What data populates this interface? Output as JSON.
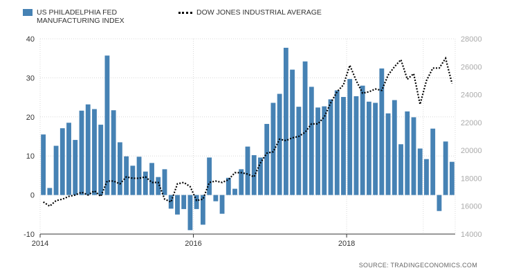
{
  "colors": {
    "bar": "#4682b4",
    "line": "#000000",
    "grid": "#d8d8d8",
    "axis": "#333333",
    "right_axis_text": "#aaaaaa"
  },
  "legend": {
    "bar_label": "US PHILADELPHIA FED MANUFACTURING INDEX",
    "line_label": "DOW JONES INDUSTRIAL AVERAGE"
  },
  "source": "SOURCE: TRADINGECONOMICS.COM",
  "chart_data": {
    "type": "bar",
    "x_range": [
      "2014-01",
      "2019-06"
    ],
    "x_ticks": [
      {
        "label": "2014",
        "date": "2014-01"
      },
      {
        "label": "2016",
        "date": "2016-01"
      },
      {
        "label": "2018",
        "date": "2018-01"
      }
    ],
    "left_axis": {
      "ylim": [
        -10,
        40
      ],
      "ticks": [
        -10,
        0,
        10,
        20,
        30,
        40
      ]
    },
    "right_axis": {
      "ylim": [
        14000,
        28000
      ],
      "ticks": [
        14000,
        16000,
        18000,
        20000,
        22000,
        24000,
        26000,
        28000
      ]
    },
    "grid": true,
    "legend_position": "top-left",
    "series": [
      {
        "name": "US PHILADELPHIA FED MANUFACTURING INDEX",
        "type": "bar",
        "axis": "left",
        "dates": [
          "2014-01",
          "2014-02",
          "2014-03",
          "2014-04",
          "2014-05",
          "2014-06",
          "2014-07",
          "2014-08",
          "2014-09",
          "2014-10",
          "2014-11",
          "2014-12",
          "2015-01",
          "2015-02",
          "2015-03",
          "2015-04",
          "2015-05",
          "2015-06",
          "2015-07",
          "2015-08",
          "2015-09",
          "2015-10",
          "2015-11",
          "2015-12",
          "2016-01",
          "2016-02",
          "2016-03",
          "2016-04",
          "2016-05",
          "2016-06",
          "2016-07",
          "2016-08",
          "2016-09",
          "2016-10",
          "2016-11",
          "2016-12",
          "2017-01",
          "2017-02",
          "2017-03",
          "2017-04",
          "2017-05",
          "2017-06",
          "2017-07",
          "2017-08",
          "2017-09",
          "2017-10",
          "2017-11",
          "2017-12",
          "2018-01",
          "2018-02",
          "2018-03",
          "2018-04",
          "2018-05",
          "2018-06",
          "2018-07",
          "2018-08",
          "2018-09",
          "2018-10",
          "2018-11",
          "2018-12",
          "2019-01",
          "2019-02",
          "2019-03",
          "2019-04",
          "2019-05"
        ],
        "values": [
          15.5,
          1.8,
          12.6,
          17.1,
          18.5,
          14.1,
          21.6,
          23.2,
          22.0,
          18.0,
          35.7,
          21.7,
          13.5,
          9.9,
          7.5,
          9.8,
          6.0,
          8.2,
          4.6,
          6.6,
          -3.5,
          -5.0,
          -3.6,
          -9.0,
          -3.6,
          -7.6,
          9.6,
          -1.6,
          -4.8,
          4.4,
          1.6,
          6.6,
          12.4,
          10.2,
          9.6,
          18.2,
          23.6,
          25.9,
          37.7,
          32.1,
          22.6,
          34.2,
          27.7,
          22.4,
          22.7,
          24.5,
          26.8,
          25.1,
          29.7,
          25.3,
          28.0,
          23.9,
          23.6,
          32.4,
          20.9,
          24.3,
          13.0,
          21.4,
          19.9,
          11.9,
          9.2,
          17.0,
          -4.1,
          13.7,
          8.5
        ]
      },
      {
        "name": "DOW JONES INDUSTRIAL AVERAGE",
        "type": "line",
        "axis": "right",
        "style": "dotted",
        "dates": [
          "2014-01",
          "2014-02",
          "2014-03",
          "2014-04",
          "2014-05",
          "2014-06",
          "2014-07",
          "2014-08",
          "2014-09",
          "2014-10",
          "2014-11",
          "2014-12",
          "2015-01",
          "2015-02",
          "2015-03",
          "2015-04",
          "2015-05",
          "2015-06",
          "2015-07",
          "2015-08",
          "2015-09",
          "2015-10",
          "2015-11",
          "2015-12",
          "2016-01",
          "2016-02",
          "2016-03",
          "2016-04",
          "2016-05",
          "2016-06",
          "2016-07",
          "2016-08",
          "2016-09",
          "2016-10",
          "2016-11",
          "2016-12",
          "2017-01",
          "2017-02",
          "2017-03",
          "2017-04",
          "2017-05",
          "2017-06",
          "2017-07",
          "2017-08",
          "2017-09",
          "2017-10",
          "2017-11",
          "2017-12",
          "2018-01",
          "2018-02",
          "2018-03",
          "2018-04",
          "2018-05",
          "2018-06",
          "2018-07",
          "2018-08",
          "2018-09",
          "2018-10",
          "2018-11",
          "2018-12",
          "2019-01",
          "2019-02",
          "2019-03",
          "2019-04",
          "2019-05"
        ],
        "values": [
          16300,
          16000,
          16400,
          16500,
          16700,
          16800,
          17000,
          16800,
          17100,
          16700,
          17800,
          17800,
          17600,
          18100,
          18000,
          18000,
          18100,
          17700,
          17700,
          16500,
          16300,
          17600,
          17700,
          17400,
          16400,
          16500,
          17700,
          17800,
          17700,
          17900,
          18400,
          18400,
          18300,
          18100,
          19100,
          19800,
          19900,
          20800,
          20700,
          20900,
          21000,
          21300,
          21900,
          21900,
          22400,
          23400,
          24200,
          24700,
          26100,
          25000,
          24100,
          24200,
          24400,
          24300,
          25400,
          26000,
          26500,
          25100,
          25500,
          23300,
          25000,
          25900,
          25900,
          26600,
          24800
        ]
      }
    ]
  }
}
